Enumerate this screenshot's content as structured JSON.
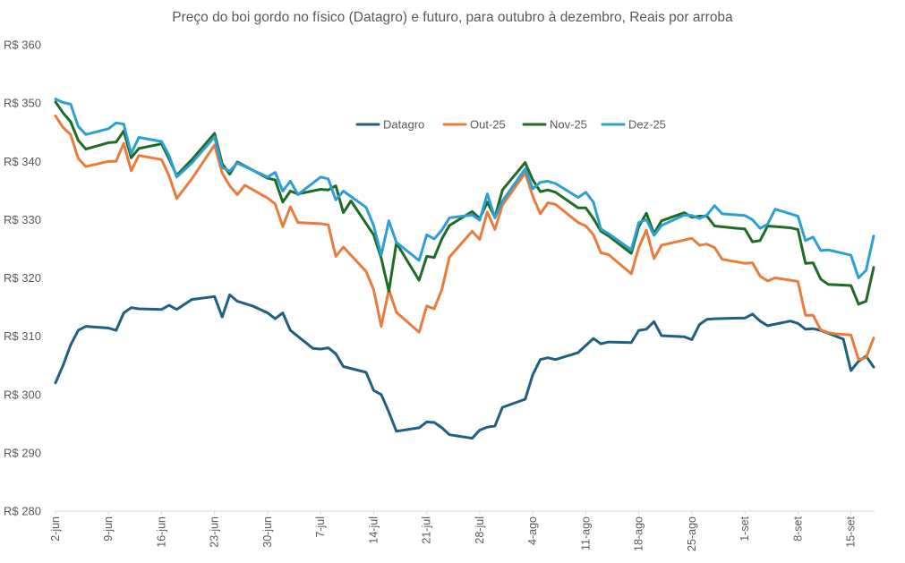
{
  "chart_data": {
    "type": "line",
    "title": "Preço do boi gordo no físico (Datagro) e futuro, para outubro à dezembro, Reais por arroba",
    "xlabel": "",
    "ylabel": "",
    "ylim": [
      280,
      360
    ],
    "y_ticks": [
      280,
      290,
      300,
      310,
      320,
      330,
      340,
      350,
      360
    ],
    "y_tick_labels": [
      "R$ 280",
      "R$ 290",
      "R$ 300",
      "R$ 310",
      "R$ 320",
      "R$ 330",
      "R$ 340",
      "R$ 350",
      "R$ 360"
    ],
    "x_tick_labels": [
      "2-jun",
      "9-jun",
      "16-jun",
      "23-jun",
      "30-jun",
      "7-jul",
      "14-jul",
      "21-jul",
      "28-jul",
      "4-ago",
      "11-ago",
      "18-ago",
      "25-ago",
      "1-set",
      "8-set",
      "15-set"
    ],
    "x_tick_index": [
      0,
      7,
      14,
      21,
      28,
      35,
      42,
      49,
      56,
      63,
      70,
      77,
      84,
      91,
      98,
      105
    ],
    "x_max_index": 108,
    "legend_position": "top-center",
    "gridlines": false,
    "series": [
      {
        "name": "Datagro",
        "color": "#1F5F82",
        "points": [
          [
            0,
            302
          ],
          [
            1,
            305
          ],
          [
            2,
            308.5
          ],
          [
            3,
            311
          ],
          [
            4,
            311.7
          ],
          [
            7,
            311.4
          ],
          [
            8,
            311
          ],
          [
            9,
            314
          ],
          [
            10,
            314.9
          ],
          [
            11,
            314.7
          ],
          [
            14,
            314.6
          ],
          [
            15,
            315.3
          ],
          [
            16,
            314.6
          ],
          [
            18,
            316.3
          ],
          [
            21,
            316.8
          ],
          [
            22,
            313.3
          ],
          [
            23,
            317.1
          ],
          [
            24,
            316
          ],
          [
            26,
            315.2
          ],
          [
            28,
            314
          ],
          [
            29,
            313
          ],
          [
            30,
            314
          ],
          [
            31,
            311
          ],
          [
            34,
            307.9
          ],
          [
            35,
            307.8
          ],
          [
            36,
            308
          ],
          [
            37,
            307
          ],
          [
            38,
            304.8
          ],
          [
            41,
            303.8
          ],
          [
            42,
            300.7
          ],
          [
            43,
            300
          ],
          [
            44,
            297
          ],
          [
            45,
            293.7
          ],
          [
            48,
            294.3
          ],
          [
            49,
            295.3
          ],
          [
            50,
            295.2
          ],
          [
            51,
            294.3
          ],
          [
            52,
            293.1
          ],
          [
            55,
            292.5
          ],
          [
            56,
            293.9
          ],
          [
            57,
            294.4
          ],
          [
            58,
            294.6
          ],
          [
            59,
            297.8
          ],
          [
            62,
            299.2
          ],
          [
            63,
            303.4
          ],
          [
            64,
            306
          ],
          [
            65,
            306.3
          ],
          [
            66,
            306
          ],
          [
            69,
            307.2
          ],
          [
            70,
            308.4
          ],
          [
            71,
            309.6
          ],
          [
            72,
            308.7
          ],
          [
            73,
            309
          ],
          [
            76,
            308.9
          ],
          [
            77,
            311
          ],
          [
            78,
            311.2
          ],
          [
            79,
            312.5
          ],
          [
            80,
            310.1
          ],
          [
            83,
            309.9
          ],
          [
            84,
            309.4
          ],
          [
            85,
            312
          ],
          [
            86,
            312.9
          ],
          [
            87,
            313
          ],
          [
            90,
            313.1
          ],
          [
            91,
            313.1
          ],
          [
            92,
            313.8
          ],
          [
            93,
            312.6
          ],
          [
            94,
            311.8
          ],
          [
            97,
            312.6
          ],
          [
            98,
            312.2
          ],
          [
            99,
            311.2
          ],
          [
            100,
            311.3
          ],
          [
            101,
            311
          ],
          [
            104,
            309.5
          ],
          [
            105,
            304.1
          ],
          [
            106,
            305.7
          ],
          [
            107,
            306.6
          ],
          [
            108,
            304.7
          ]
        ]
      },
      {
        "name": "Out-25",
        "color": "#E97C3C",
        "points": [
          [
            0,
            347.8
          ],
          [
            1,
            345.8
          ],
          [
            2,
            344.6
          ],
          [
            3,
            340.5
          ],
          [
            4,
            339.1
          ],
          [
            7,
            340
          ],
          [
            8,
            340
          ],
          [
            9,
            343.1
          ],
          [
            10,
            338.4
          ],
          [
            11,
            341
          ],
          [
            14,
            340.3
          ],
          [
            15,
            337.5
          ],
          [
            16,
            333.6
          ],
          [
            18,
            337
          ],
          [
            21,
            342.8
          ],
          [
            22,
            338
          ],
          [
            23,
            335.8
          ],
          [
            24,
            334.3
          ],
          [
            25,
            335.9
          ],
          [
            28,
            333.7
          ],
          [
            29,
            332.7
          ],
          [
            30,
            328.8
          ],
          [
            31,
            332.2
          ],
          [
            32,
            329.5
          ],
          [
            35,
            329.3
          ],
          [
            36,
            329.1
          ],
          [
            37,
            323.7
          ],
          [
            38,
            325.3
          ],
          [
            41,
            321.1
          ],
          [
            42,
            318
          ],
          [
            43,
            311.7
          ],
          [
            44,
            318
          ],
          [
            45,
            314.1
          ],
          [
            48,
            310.7
          ],
          [
            49,
            315.2
          ],
          [
            50,
            314.7
          ],
          [
            51,
            318
          ],
          [
            52,
            323.6
          ],
          [
            55,
            328
          ],
          [
            56,
            326.6
          ],
          [
            57,
            331.3
          ],
          [
            58,
            328.3
          ],
          [
            59,
            332.5
          ],
          [
            62,
            338
          ],
          [
            63,
            334
          ],
          [
            64,
            331
          ],
          [
            65,
            332.9
          ],
          [
            66,
            332.6
          ],
          [
            69,
            329.5
          ],
          [
            70,
            328.9
          ],
          [
            71,
            327.4
          ],
          [
            72,
            324.3
          ],
          [
            73,
            324
          ],
          [
            76,
            320.7
          ],
          [
            77,
            325.2
          ],
          [
            78,
            328.2
          ],
          [
            79,
            323.3
          ],
          [
            80,
            325.6
          ],
          [
            83,
            326.5
          ],
          [
            84,
            326.8
          ],
          [
            85,
            325.6
          ],
          [
            86,
            325.8
          ],
          [
            87,
            325.2
          ],
          [
            88,
            323.2
          ],
          [
            91,
            322.5
          ],
          [
            92,
            322.6
          ],
          [
            93,
            320.3
          ],
          [
            94,
            319.5
          ],
          [
            95,
            320
          ],
          [
            98,
            319.4
          ],
          [
            99,
            313.6
          ],
          [
            100,
            313.6
          ],
          [
            101,
            311.1
          ],
          [
            102,
            310.6
          ],
          [
            103,
            310.4
          ],
          [
            105,
            310.2
          ],
          [
            106,
            306
          ],
          [
            107,
            306.3
          ],
          [
            108,
            309.7
          ]
        ]
      },
      {
        "name": "Nov-25",
        "color": "#1E6B24",
        "points": [
          [
            0,
            350.2
          ],
          [
            1,
            348.3
          ],
          [
            2,
            346.8
          ],
          [
            3,
            343.6
          ],
          [
            4,
            342.1
          ],
          [
            7,
            343.2
          ],
          [
            8,
            343.3
          ],
          [
            9,
            345.2
          ],
          [
            10,
            340.6
          ],
          [
            11,
            342.2
          ],
          [
            14,
            343
          ],
          [
            15,
            340.4
          ],
          [
            16,
            337.6
          ],
          [
            18,
            340.3
          ],
          [
            21,
            344.8
          ],
          [
            22,
            339.6
          ],
          [
            23,
            337.8
          ],
          [
            24,
            339.9
          ],
          [
            28,
            337.1
          ],
          [
            29,
            336.8
          ],
          [
            30,
            333
          ],
          [
            31,
            334.9
          ],
          [
            32,
            334.4
          ],
          [
            35,
            335.2
          ],
          [
            36,
            335.1
          ],
          [
            37,
            335.8
          ],
          [
            38,
            331.2
          ],
          [
            39,
            333.2
          ],
          [
            42,
            327.4
          ],
          [
            43,
            323.4
          ],
          [
            44,
            317.7
          ],
          [
            45,
            326
          ],
          [
            48,
            319.6
          ],
          [
            49,
            323.7
          ],
          [
            50,
            323.5
          ],
          [
            51,
            326.7
          ],
          [
            52,
            329
          ],
          [
            55,
            331.4
          ],
          [
            56,
            330.2
          ],
          [
            57,
            333
          ],
          [
            58,
            330.4
          ],
          [
            59,
            335.1
          ],
          [
            62,
            339.8
          ],
          [
            63,
            336.8
          ],
          [
            64,
            334.8
          ],
          [
            65,
            335.1
          ],
          [
            66,
            334.7
          ],
          [
            69,
            332
          ],
          [
            70,
            332
          ],
          [
            71,
            330.2
          ],
          [
            72,
            328
          ],
          [
            73,
            327.2
          ],
          [
            76,
            324.2
          ],
          [
            77,
            328.8
          ],
          [
            78,
            331.1
          ],
          [
            79,
            327.6
          ],
          [
            80,
            329.8
          ],
          [
            83,
            331.2
          ],
          [
            84,
            330.4
          ],
          [
            85,
            330.6
          ],
          [
            86,
            330.6
          ],
          [
            87,
            328.9
          ],
          [
            90,
            328.5
          ],
          [
            91,
            328.4
          ],
          [
            92,
            326.2
          ],
          [
            93,
            326.4
          ],
          [
            94,
            328.9
          ],
          [
            97,
            328.6
          ],
          [
            98,
            328.3
          ],
          [
            99,
            322.5
          ],
          [
            100,
            322.6
          ],
          [
            101,
            319.8
          ],
          [
            102,
            318.9
          ],
          [
            105,
            318.7
          ],
          [
            106,
            315.5
          ],
          [
            107,
            316
          ],
          [
            108,
            321.8
          ]
        ]
      },
      {
        "name": "Dez-25",
        "color": "#2C9FD4",
        "points": [
          [
            0,
            350.7
          ],
          [
            1,
            350.1
          ],
          [
            2,
            349.8
          ],
          [
            3,
            346
          ],
          [
            4,
            344.6
          ],
          [
            7,
            345.6
          ],
          [
            8,
            346.6
          ],
          [
            9,
            346.4
          ],
          [
            10,
            341.3
          ],
          [
            11,
            344.1
          ],
          [
            14,
            343.4
          ],
          [
            15,
            341
          ],
          [
            16,
            337.3
          ],
          [
            18,
            339.7
          ],
          [
            21,
            344.2
          ],
          [
            22,
            339
          ],
          [
            23,
            338.3
          ],
          [
            24,
            339.7
          ],
          [
            28,
            337.3
          ],
          [
            29,
            338.1
          ],
          [
            30,
            334.9
          ],
          [
            31,
            336.6
          ],
          [
            32,
            334.3
          ],
          [
            35,
            337.3
          ],
          [
            36,
            337
          ],
          [
            37,
            333.4
          ],
          [
            38,
            334.9
          ],
          [
            41,
            332.1
          ],
          [
            42,
            329
          ],
          [
            43,
            323.9
          ],
          [
            44,
            329.8
          ],
          [
            45,
            326.1
          ],
          [
            48,
            323
          ],
          [
            49,
            327.4
          ],
          [
            50,
            326.7
          ],
          [
            51,
            328.2
          ],
          [
            52,
            330.3
          ],
          [
            55,
            330.8
          ],
          [
            56,
            329.9
          ],
          [
            57,
            334.4
          ],
          [
            58,
            330.3
          ],
          [
            59,
            333.2
          ],
          [
            62,
            338.7
          ],
          [
            63,
            335.3
          ],
          [
            64,
            336.4
          ],
          [
            65,
            336.6
          ],
          [
            66,
            336.2
          ],
          [
            69,
            333.8
          ],
          [
            70,
            334.7
          ],
          [
            71,
            333
          ],
          [
            72,
            328.4
          ],
          [
            73,
            327.6
          ],
          [
            76,
            324.8
          ],
          [
            77,
            329.5
          ],
          [
            78,
            330
          ],
          [
            79,
            327.3
          ],
          [
            80,
            329
          ],
          [
            83,
            330.8
          ],
          [
            84,
            330.7
          ],
          [
            85,
            330.2
          ],
          [
            86,
            330.8
          ],
          [
            87,
            332.4
          ],
          [
            88,
            331
          ],
          [
            91,
            330.7
          ],
          [
            92,
            330
          ],
          [
            93,
            328.5
          ],
          [
            94,
            329.2
          ],
          [
            95,
            331.8
          ],
          [
            98,
            330.6
          ],
          [
            99,
            326.4
          ],
          [
            100,
            327
          ],
          [
            101,
            324.7
          ],
          [
            102,
            324.8
          ],
          [
            105,
            323.9
          ],
          [
            106,
            320
          ],
          [
            107,
            321.3
          ],
          [
            108,
            327.2
          ]
        ]
      }
    ]
  }
}
